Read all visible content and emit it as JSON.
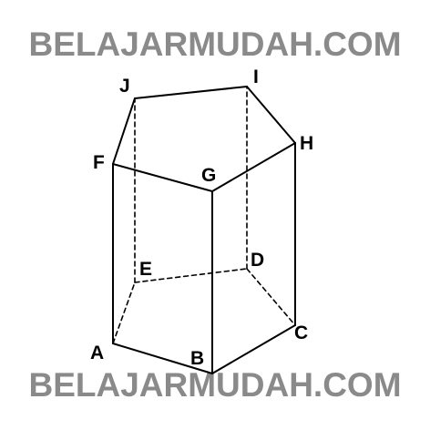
{
  "watermark": {
    "text": "BELAJARMUDAH.COM",
    "color": "#8a8a8a"
  },
  "figure": {
    "stroke_color": "#000000",
    "vertices": {
      "A": "A",
      "B": "B",
      "C": "C",
      "D": "D",
      "E": "E",
      "F": "F",
      "G": "G",
      "H": "H",
      "I": "I",
      "J": "J"
    },
    "solid_edges": [
      "A-B",
      "B-C",
      "F-G",
      "G-H",
      "H-I",
      "I-J",
      "J-F",
      "A-F",
      "B-G",
      "C-H"
    ],
    "hidden_edges": [
      "A-E",
      "E-D",
      "D-C",
      "E-J",
      "D-I"
    ]
  }
}
